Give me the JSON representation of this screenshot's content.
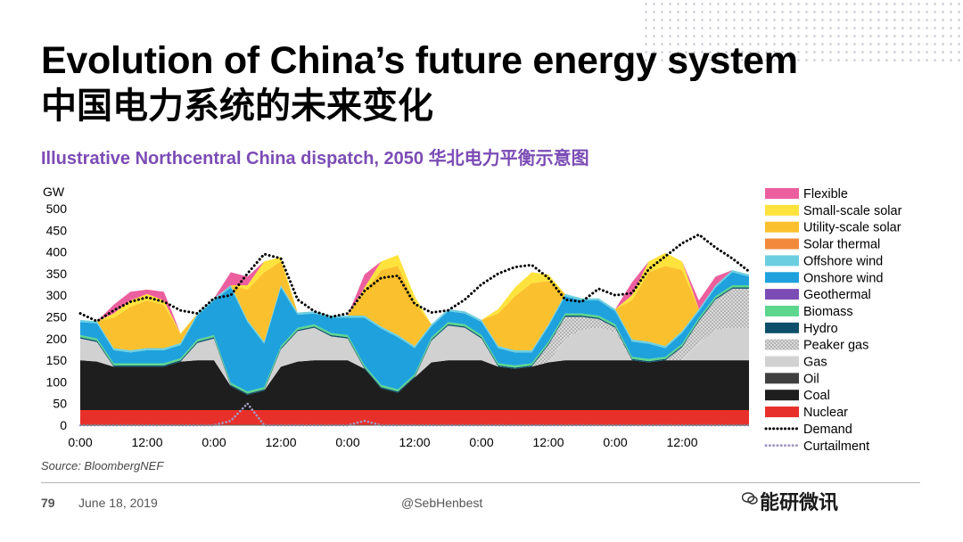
{
  "header": {
    "title": "Evolution of China’s future energy system",
    "title_cn": "中国电力系统的未来变化",
    "subtitle": "Illustrative Northcentral China dispatch, 2050 华北电力平衡示意图"
  },
  "footer": {
    "source": "Source: BloombergNEF",
    "page_number": "79",
    "date": "June 18, 2019",
    "handle": "@SebHenbest",
    "brand": "能研微讯"
  },
  "chart_data": {
    "type": "area",
    "stacked": true,
    "ylabel": "GW",
    "ylim": [
      0,
      500
    ],
    "yticks": [
      0,
      50,
      100,
      150,
      200,
      250,
      300,
      350,
      400,
      450,
      500
    ],
    "xlim": [
      0,
      120
    ],
    "x_unit": "hours",
    "xticks": [
      {
        "x": 0,
        "label": "0:00"
      },
      {
        "x": 12,
        "label": "12:00"
      },
      {
        "x": 24,
        "label": "0:00"
      },
      {
        "x": 36,
        "label": "12:00"
      },
      {
        "x": 48,
        "label": "0:00"
      },
      {
        "x": 60,
        "label": "12:00"
      },
      {
        "x": 72,
        "label": "0:00"
      },
      {
        "x": 84,
        "label": "12:00"
      },
      {
        "x": 96,
        "label": "0:00"
      },
      {
        "x": 108,
        "label": "12:00"
      }
    ],
    "grid": false,
    "legend_position": "right",
    "x": [
      0,
      3,
      6,
      9,
      12,
      15,
      18,
      21,
      24,
      27,
      30,
      33,
      36,
      39,
      42,
      45,
      48,
      51,
      54,
      57,
      60,
      63,
      66,
      69,
      72,
      75,
      78,
      81,
      84,
      87,
      90,
      93,
      96,
      99,
      102,
      105,
      108,
      111,
      114,
      117,
      120
    ],
    "series": [
      {
        "name": "Nuclear",
        "color": "#e8302a",
        "values": [
          35,
          35,
          35,
          35,
          35,
          35,
          35,
          35,
          35,
          35,
          35,
          35,
          35,
          35,
          35,
          35,
          35,
          35,
          35,
          35,
          35,
          35,
          35,
          35,
          35,
          35,
          35,
          35,
          35,
          35,
          35,
          35,
          35,
          35,
          35,
          35,
          35,
          35,
          35,
          35,
          35
        ]
      },
      {
        "name": "Coal",
        "color": "#1e1e1e",
        "values": [
          115,
          112,
          100,
          100,
          100,
          100,
          112,
          115,
          115,
          55,
          35,
          45,
          100,
          112,
          115,
          115,
          115,
          95,
          50,
          40,
          75,
          110,
          115,
          115,
          115,
          100,
          95,
          100,
          110,
          115,
          115,
          115,
          115,
          115,
          110,
          115,
          115,
          115,
          115,
          115,
          115
        ]
      },
      {
        "name": "Oil",
        "color": "#3f3f3f",
        "values": [
          0,
          0,
          0,
          0,
          0,
          0,
          0,
          0,
          0,
          0,
          0,
          0,
          0,
          0,
          0,
          0,
          0,
          0,
          0,
          0,
          0,
          0,
          0,
          0,
          0,
          0,
          0,
          0,
          0,
          0,
          0,
          0,
          0,
          0,
          0,
          0,
          0,
          0,
          0,
          0,
          0
        ]
      },
      {
        "name": "Gas",
        "color": "#d1d1d1",
        "values": [
          50,
          45,
          0,
          0,
          0,
          0,
          0,
          40,
          50,
          0,
          0,
          0,
          40,
          70,
          75,
          55,
          50,
          0,
          0,
          0,
          0,
          50,
          80,
          75,
          50,
          0,
          0,
          0,
          0,
          50,
          70,
          75,
          65,
          0,
          0,
          0,
          0,
          40,
          70,
          75,
          75
        ]
      },
      {
        "name": "Peaker gas",
        "color": "#b3b3b3",
        "pattern": true,
        "values": [
          0,
          0,
          0,
          0,
          0,
          0,
          0,
          0,
          0,
          0,
          0,
          0,
          0,
          0,
          0,
          0,
          0,
          0,
          0,
          0,
          0,
          0,
          0,
          0,
          0,
          0,
          0,
          0,
          40,
          50,
          30,
          20,
          10,
          0,
          0,
          0,
          30,
          50,
          70,
          90,
          90
        ]
      },
      {
        "name": "Hydro",
        "color": "#0d4f6b",
        "values": [
          3,
          3,
          3,
          3,
          3,
          3,
          3,
          3,
          3,
          3,
          3,
          3,
          3,
          3,
          3,
          3,
          3,
          3,
          3,
          3,
          3,
          3,
          3,
          3,
          3,
          3,
          3,
          3,
          3,
          3,
          3,
          3,
          3,
          3,
          3,
          3,
          3,
          3,
          3,
          3,
          3
        ]
      },
      {
        "name": "Biomass",
        "color": "#5dd68e",
        "values": [
          5,
          5,
          5,
          5,
          5,
          5,
          5,
          5,
          5,
          5,
          5,
          5,
          5,
          5,
          5,
          5,
          5,
          5,
          5,
          5,
          5,
          5,
          5,
          5,
          5,
          5,
          5,
          5,
          5,
          5,
          5,
          5,
          5,
          5,
          5,
          5,
          5,
          5,
          5,
          5,
          5
        ]
      },
      {
        "name": "Geothermal",
        "color": "#7b4cb5",
        "values": [
          0,
          0,
          0,
          0,
          0,
          0,
          0,
          0,
          0,
          0,
          0,
          0,
          0,
          0,
          0,
          0,
          0,
          0,
          0,
          0,
          0,
          0,
          0,
          0,
          0,
          0,
          0,
          0,
          0,
          0,
          0,
          0,
          0,
          0,
          0,
          0,
          0,
          0,
          0,
          0,
          0
        ]
      },
      {
        "name": "Onshore wind",
        "color": "#1ea1dc",
        "values": [
          30,
          35,
          30,
          25,
          30,
          30,
          30,
          55,
          80,
          220,
          160,
          100,
          135,
          30,
          25,
          35,
          40,
          110,
          130,
          120,
          60,
          25,
          25,
          25,
          30,
          35,
          30,
          25,
          35,
          40,
          30,
          35,
          30,
          35,
          35,
          20,
          25,
          15,
          20,
          30,
          20
        ]
      },
      {
        "name": "Offshore wind",
        "color": "#6ccfe0",
        "values": [
          5,
          5,
          5,
          5,
          5,
          5,
          5,
          5,
          5,
          5,
          5,
          5,
          5,
          5,
          5,
          5,
          5,
          5,
          5,
          5,
          5,
          5,
          5,
          5,
          5,
          5,
          5,
          5,
          5,
          5,
          5,
          5,
          5,
          5,
          5,
          5,
          5,
          5,
          5,
          5,
          5
        ]
      },
      {
        "name": "Solar thermal",
        "color": "#f28a3c",
        "values": [
          0,
          0,
          0,
          0,
          0,
          0,
          0,
          0,
          0,
          0,
          0,
          0,
          0,
          0,
          0,
          0,
          0,
          0,
          0,
          0,
          0,
          0,
          0,
          0,
          0,
          0,
          0,
          0,
          0,
          0,
          0,
          0,
          0,
          0,
          0,
          0,
          0,
          0,
          0,
          0,
          0
        ]
      },
      {
        "name": "Utility-scale solar",
        "color": "#fbc02d",
        "values": [
          0,
          0,
          70,
          100,
          110,
          100,
          20,
          0,
          0,
          0,
          70,
          160,
          55,
          0,
          0,
          0,
          0,
          55,
          130,
          160,
          100,
          0,
          0,
          0,
          0,
          75,
          125,
          155,
          100,
          0,
          0,
          0,
          0,
          90,
          160,
          185,
          140,
          0,
          0,
          0,
          0
        ]
      },
      {
        "name": "Small-scale solar",
        "color": "#ffe33d",
        "values": [
          0,
          0,
          10,
          15,
          15,
          10,
          2,
          0,
          0,
          0,
          10,
          25,
          10,
          0,
          0,
          0,
          0,
          10,
          20,
          25,
          15,
          0,
          0,
          0,
          0,
          10,
          20,
          25,
          15,
          0,
          0,
          0,
          0,
          12,
          25,
          30,
          20,
          0,
          0,
          0,
          0
        ]
      },
      {
        "name": "Flexible",
        "color": "#ec5f9e",
        "values": [
          0,
          0,
          20,
          20,
          10,
          20,
          0,
          0,
          0,
          30,
          20,
          0,
          0,
          0,
          0,
          0,
          0,
          30,
          0,
          0,
          0,
          0,
          0,
          0,
          0,
          0,
          0,
          0,
          0,
          0,
          0,
          0,
          0,
          30,
          0,
          0,
          0,
          20,
          20,
          0,
          0
        ]
      }
    ],
    "overlays": [
      {
        "name": "Demand",
        "style": "dotted",
        "color": "#000000",
        "values": [
          258,
          240,
          265,
          285,
          295,
          285,
          265,
          258,
          293,
          300,
          350,
          395,
          385,
          290,
          263,
          250,
          258,
          310,
          340,
          345,
          280,
          260,
          265,
          290,
          325,
          350,
          365,
          370,
          340,
          290,
          285,
          315,
          300,
          305,
          360,
          390,
          420,
          440,
          410,
          385,
          355
        ]
      },
      {
        "name": "Curtailment",
        "style": "dotted",
        "color": "#a599c4",
        "values": [
          0,
          0,
          0,
          0,
          0,
          0,
          0,
          0,
          0,
          10,
          50,
          0,
          0,
          0,
          0,
          0,
          0,
          10,
          0,
          0,
          0,
          0,
          0,
          0,
          0,
          0,
          0,
          0,
          0,
          0,
          0,
          0,
          0,
          0,
          0,
          0,
          0,
          0,
          0,
          0,
          0
        ]
      }
    ],
    "legend": [
      {
        "label": "Flexible",
        "color": "#ec5f9e",
        "kind": "box"
      },
      {
        "label": "Small-scale solar",
        "color": "#ffe33d",
        "kind": "box"
      },
      {
        "label": "Utility-scale solar",
        "color": "#fbc02d",
        "kind": "box"
      },
      {
        "label": "Solar thermal",
        "color": "#f28a3c",
        "kind": "box"
      },
      {
        "label": "Offshore wind",
        "color": "#6ccfe0",
        "kind": "box"
      },
      {
        "label": "Onshore wind",
        "color": "#1ea1dc",
        "kind": "box"
      },
      {
        "label": "Geothermal",
        "color": "#7b4cb5",
        "kind": "box"
      },
      {
        "label": "Biomass",
        "color": "#5dd68e",
        "kind": "box"
      },
      {
        "label": "Hydro",
        "color": "#0d4f6b",
        "kind": "box"
      },
      {
        "label": "Peaker gas",
        "color": "#b3b3b3",
        "kind": "pattern"
      },
      {
        "label": "Gas",
        "color": "#d1d1d1",
        "kind": "box"
      },
      {
        "label": "Oil",
        "color": "#3f3f3f",
        "kind": "box"
      },
      {
        "label": "Coal",
        "color": "#1e1e1e",
        "kind": "box"
      },
      {
        "label": "Nuclear",
        "color": "#e8302a",
        "kind": "box"
      },
      {
        "label": "Demand",
        "color": "#000000",
        "kind": "dots"
      },
      {
        "label": "Curtailment",
        "color": "#a599c4",
        "kind": "dots"
      }
    ]
  }
}
